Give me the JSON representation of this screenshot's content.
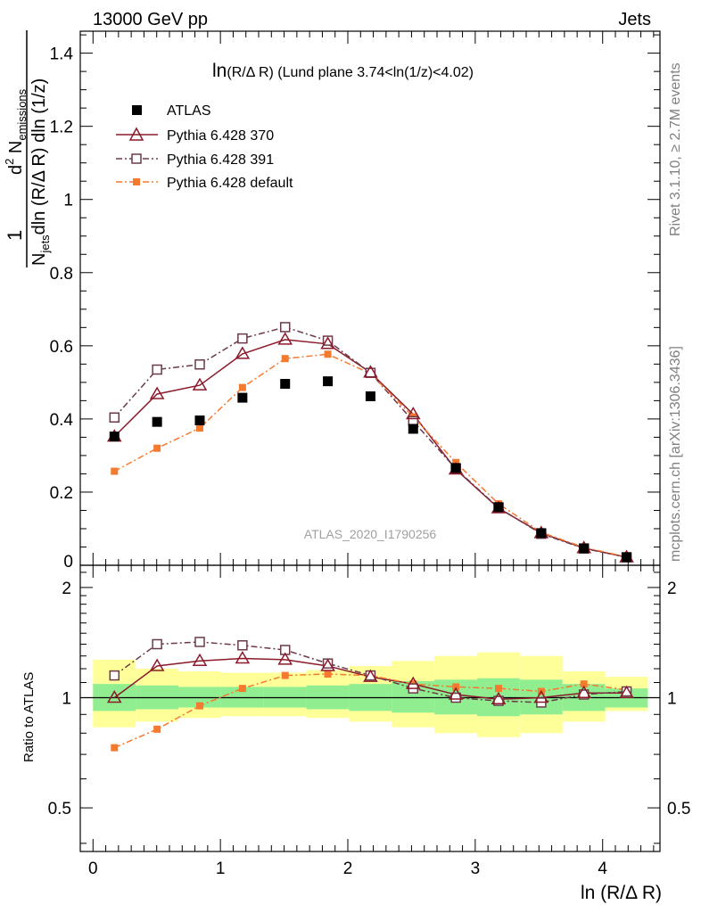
{
  "header": {
    "left": "13000 GeV pp",
    "right": "Jets"
  },
  "side_labels": {
    "rivet": "Rivet 3.1.10, ≥ 2.7M events",
    "mcplots": "mcplots.cern.ch [arXiv:1306.3436]"
  },
  "watermark": "ATLAS_2020_I1790256",
  "colors": {
    "atlas": "#000000",
    "p370": "#8b1a2b",
    "p391": "#6b3a4a",
    "pdefault": "#f47a30",
    "band_inner": "#90ee90",
    "band_outer": "#ffff99"
  },
  "chart_data": [
    {
      "type": "line",
      "title_main": "ln",
      "title_rest": "(R/Δ R) (Lund plane 3.74<ln(1/z)<4.02)",
      "ylabel_frac_num": "1",
      "ylabel_den_a": "N",
      "ylabel_den_sub": "jets",
      "ylabel_den_b": "dln (R/Δ R) dln (1/z)",
      "ylabel_num_b": "d",
      "ylabel_num_sup": "2",
      "ylabel_num_c": " N",
      "ylabel_num_sub": "emissions",
      "xlim": [
        -0.1,
        4.45
      ],
      "ylim": [
        0,
        1.46
      ],
      "yticks": [
        0,
        0.2,
        0.4,
        0.6,
        0.8,
        1,
        1.2,
        1.4
      ],
      "ytick_labels": [
        "0",
        "0.2",
        "0.4",
        "0.6",
        "0.8",
        "1",
        "1.2",
        "1.4"
      ],
      "x": [
        0.168,
        0.503,
        0.838,
        1.173,
        1.508,
        1.843,
        2.178,
        2.513,
        2.848,
        3.183,
        3.518,
        3.853,
        4.188
      ],
      "legend": [
        "ATLAS",
        "Pythia 6.428 370",
        "Pythia 6.428 391",
        "Pythia 6.428 default"
      ],
      "series": [
        {
          "name": "ATLAS",
          "values": [
            0.352,
            0.392,
            0.396,
            0.458,
            0.496,
            0.503,
            0.462,
            0.373,
            0.266,
            0.159,
            0.088,
            0.046,
            0.022
          ]
        },
        {
          "name": "Pythia 6.428 370",
          "values": [
            0.352,
            0.468,
            0.492,
            0.578,
            0.617,
            0.605,
            0.527,
            0.413,
            0.262,
            0.156,
            0.088,
            0.047,
            0.022
          ]
        },
        {
          "name": "Pythia 6.428 391",
          "values": [
            0.404,
            0.535,
            0.549,
            0.62,
            0.651,
            0.614,
            0.526,
            0.394,
            0.264,
            0.157,
            0.086,
            0.046,
            0.022
          ]
        },
        {
          "name": "Pythia 6.428 default",
          "values": [
            0.257,
            0.32,
            0.375,
            0.486,
            0.565,
            0.577,
            0.524,
            0.406,
            0.281,
            0.168,
            0.09,
            0.049,
            0.023
          ]
        }
      ]
    },
    {
      "type": "line",
      "ylabel": "Ratio to ATLAS",
      "xlabel": "ln (R/Δ R)",
      "scale": "log",
      "xlim": [
        -0.1,
        4.45
      ],
      "ylim": [
        0.38,
        2.3
      ],
      "yticks": [
        0.5,
        1,
        2
      ],
      "ytick_labels": [
        "0.5",
        "1",
        "2"
      ],
      "xticks": [
        0,
        1,
        2,
        3,
        4
      ],
      "xtick_labels": [
        "0",
        "1",
        "2",
        "3",
        "4"
      ],
      "x": [
        0.168,
        0.503,
        0.838,
        1.173,
        1.508,
        1.843,
        2.178,
        2.513,
        2.848,
        3.183,
        3.518,
        3.853,
        4.188
      ],
      "bin_edges": [
        0.0,
        0.335,
        0.67,
        1.005,
        1.34,
        1.675,
        2.01,
        2.345,
        2.68,
        3.015,
        3.35,
        3.685,
        4.02,
        4.355
      ],
      "band_inner": [
        [
          0.92,
          1.09
        ],
        [
          0.93,
          1.08
        ],
        [
          0.94,
          1.07
        ],
        [
          0.94,
          1.07
        ],
        [
          0.94,
          1.07
        ],
        [
          0.93,
          1.08
        ],
        [
          0.92,
          1.09
        ],
        [
          0.91,
          1.11
        ],
        [
          0.9,
          1.12
        ],
        [
          0.89,
          1.13
        ],
        [
          0.9,
          1.12
        ],
        [
          0.92,
          1.09
        ],
        [
          0.94,
          1.06
        ]
      ],
      "band_outer": [
        [
          0.83,
          1.27
        ],
        [
          0.86,
          1.2
        ],
        [
          0.88,
          1.18
        ],
        [
          0.89,
          1.17
        ],
        [
          0.89,
          1.17
        ],
        [
          0.88,
          1.19
        ],
        [
          0.86,
          1.22
        ],
        [
          0.83,
          1.26
        ],
        [
          0.8,
          1.3
        ],
        [
          0.78,
          1.33
        ],
        [
          0.8,
          1.3
        ],
        [
          0.86,
          1.18
        ],
        [
          0.92,
          1.14
        ]
      ],
      "series": [
        {
          "name": "Pythia 6.428 370",
          "values": [
            1.0,
            1.22,
            1.26,
            1.28,
            1.27,
            1.22,
            1.14,
            1.09,
            1.02,
            0.99,
            1.0,
            1.03,
            1.03
          ]
        },
        {
          "name": "Pythia 6.428 391",
          "values": [
            1.15,
            1.4,
            1.42,
            1.39,
            1.35,
            1.24,
            1.15,
            1.06,
            1.0,
            0.98,
            0.97,
            1.02,
            1.04
          ]
        },
        {
          "name": "Pythia 6.428 default",
          "values": [
            0.73,
            0.82,
            0.95,
            1.06,
            1.15,
            1.16,
            1.15,
            1.09,
            1.07,
            1.06,
            1.04,
            1.09,
            1.05
          ]
        }
      ]
    }
  ]
}
